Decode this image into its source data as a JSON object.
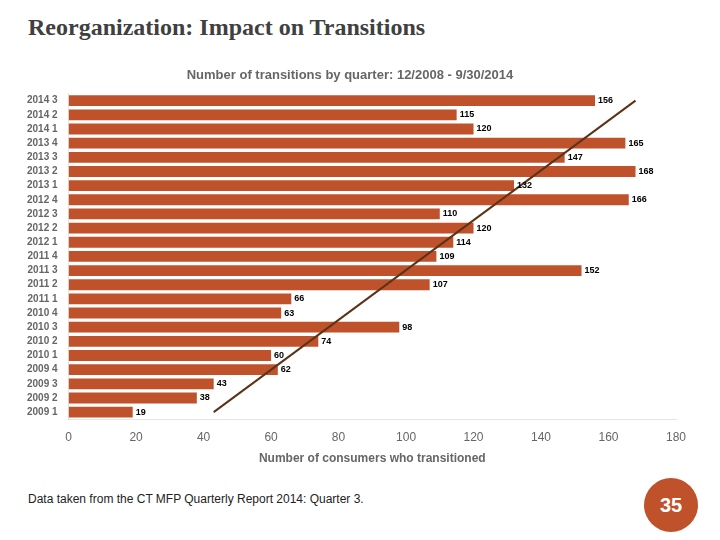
{
  "chart_data": {
    "type": "bar",
    "orientation": "horizontal",
    "title": "Reorganization: Impact on Transitions",
    "subtitle": "Number of transitions by quarter: 12/2008 - 9/30/2014",
    "xlabel": "Number of consumers who transitioned",
    "annotations": [
      "Data taken from the CT MFP Quarterly Report 2014: Quarter 3.",
      "35"
    ],
    "categories": [
      "2014 3",
      "2014 2",
      "2014 1",
      "2013 4",
      "2013 3",
      "2013 2",
      "2013 1",
      "2012 4",
      "2012 3",
      "2012 2",
      "2012 1",
      "2011 4",
      "2011 3",
      "2011 2",
      "2011 1",
      "2010 4",
      "2010 3",
      "2010 2",
      "2010 1",
      "2009 4",
      "2009 3",
      "2009 2",
      "2009 1"
    ],
    "series": [
      {
        "type": "bar",
        "color": "#C0522B",
        "data_labels": true,
        "values": [
          156,
          115,
          120,
          165,
          147,
          168,
          132,
          166,
          110,
          120,
          114,
          109,
          152,
          107,
          66,
          63,
          98,
          74,
          60,
          62,
          43,
          38,
          19
        ]
      },
      {
        "type": "line",
        "color": "#5C3317",
        "values": [
          168,
          null,
          null,
          null,
          null,
          null,
          null,
          null,
          null,
          null,
          null,
          null,
          null,
          null,
          null,
          null,
          null,
          null,
          null,
          null,
          null,
          null,
          43
        ]
      }
    ],
    "xlim": [
      0,
      180
    ],
    "xticks": [
      0,
      20,
      40,
      60,
      80,
      100,
      120,
      140,
      160,
      180
    ],
    "grid": false
  }
}
